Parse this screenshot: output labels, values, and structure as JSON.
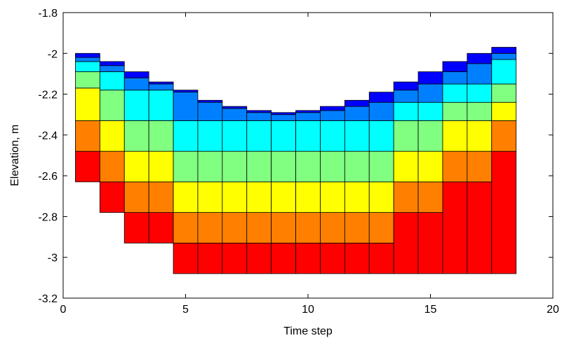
{
  "chart_data": {
    "type": "bar",
    "title": "",
    "xlabel": "Time step",
    "ylabel": "Elevation, m",
    "xlim": [
      0,
      20
    ],
    "ylim": [
      -3.2,
      -1.8
    ],
    "xticks": [
      "0",
      "5",
      "10",
      "15",
      "20"
    ],
    "yticks": [
      "-1.8",
      "-2",
      "-2.2",
      "-2.4",
      "-2.6",
      "-2.8",
      "-3",
      "-3.2"
    ],
    "grid": false,
    "legend": "none",
    "layer_colors": [
      "#ff0000",
      "#ff8000",
      "#ffff00",
      "#80ff80",
      "#00ffff",
      "#0080ff",
      "#0000ff"
    ],
    "columns": [
      {
        "x": 1,
        "bounds": [
          -2.63,
          -2.48,
          -2.33,
          -2.17,
          -2.09,
          -2.04,
          -2.02,
          -2.0
        ]
      },
      {
        "x": 2,
        "bounds": [
          -2.78,
          -2.63,
          -2.48,
          -2.33,
          -2.18,
          -2.09,
          -2.06,
          -2.04
        ]
      },
      {
        "x": 3,
        "bounds": [
          -2.93,
          -2.78,
          -2.63,
          -2.48,
          -2.33,
          -2.18,
          -2.12,
          -2.09
        ]
      },
      {
        "x": 4,
        "bounds": [
          -2.93,
          -2.78,
          -2.63,
          -2.48,
          -2.33,
          -2.18,
          -2.15,
          -2.14
        ]
      },
      {
        "x": 5,
        "bounds": [
          -3.08,
          -2.93,
          -2.78,
          -2.63,
          -2.48,
          -2.33,
          -2.19,
          -2.18
        ]
      },
      {
        "x": 6,
        "bounds": [
          -3.08,
          -2.93,
          -2.78,
          -2.63,
          -2.48,
          -2.33,
          -2.24,
          -2.23
        ]
      },
      {
        "x": 7,
        "bounds": [
          -3.08,
          -2.93,
          -2.78,
          -2.63,
          -2.48,
          -2.33,
          -2.27,
          -2.26
        ]
      },
      {
        "x": 8,
        "bounds": [
          -3.08,
          -2.93,
          -2.78,
          -2.63,
          -2.48,
          -2.33,
          -2.29,
          -2.28
        ]
      },
      {
        "x": 9,
        "bounds": [
          -3.08,
          -2.93,
          -2.78,
          -2.63,
          -2.48,
          -2.33,
          -2.3,
          -2.29
        ]
      },
      {
        "x": 10,
        "bounds": [
          -3.08,
          -2.93,
          -2.78,
          -2.63,
          -2.48,
          -2.33,
          -2.29,
          -2.28
        ]
      },
      {
        "x": 11,
        "bounds": [
          -3.08,
          -2.93,
          -2.78,
          -2.63,
          -2.48,
          -2.33,
          -2.28,
          -2.26
        ]
      },
      {
        "x": 12,
        "bounds": [
          -3.08,
          -2.93,
          -2.78,
          -2.63,
          -2.48,
          -2.33,
          -2.26,
          -2.23
        ]
      },
      {
        "x": 13,
        "bounds": [
          -3.08,
          -2.93,
          -2.78,
          -2.63,
          -2.48,
          -2.33,
          -2.24,
          -2.19
        ]
      },
      {
        "x": 14,
        "bounds": [
          -3.08,
          -2.78,
          -2.63,
          -2.48,
          -2.33,
          -2.24,
          -2.18,
          -2.14
        ]
      },
      {
        "x": 15,
        "bounds": [
          -3.08,
          -2.78,
          -2.63,
          -2.48,
          -2.33,
          -2.24,
          -2.15,
          -2.09
        ]
      },
      {
        "x": 16,
        "bounds": [
          -3.08,
          -2.63,
          -2.48,
          -2.33,
          -2.24,
          -2.15,
          -2.09,
          -2.04
        ]
      },
      {
        "x": 17,
        "bounds": [
          -3.08,
          -2.63,
          -2.48,
          -2.33,
          -2.24,
          -2.15,
          -2.05,
          -2.0
        ]
      },
      {
        "x": 18,
        "bounds": [
          -3.08,
          -2.48,
          -2.33,
          -2.24,
          -2.15,
          -2.03,
          -2.0,
          -1.97
        ]
      }
    ]
  }
}
